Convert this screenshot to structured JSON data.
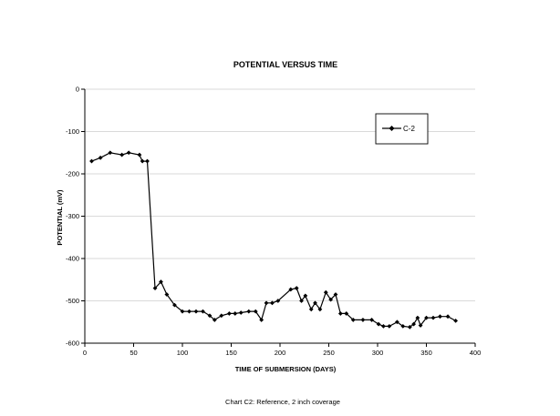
{
  "chart_data": {
    "type": "line",
    "title": "POTENTIAL VERSUS TIME",
    "xlabel": "TIME OF SUBMERSION (DAYS)",
    "ylabel": "POTENTIAL (mV)",
    "xlim": [
      0,
      400
    ],
    "ylim": [
      -600,
      0
    ],
    "xticks": [
      0,
      50,
      100,
      150,
      200,
      250,
      300,
      350,
      400
    ],
    "yticks": [
      0,
      -100,
      -200,
      -300,
      -400,
      -500,
      -600
    ],
    "grid": true,
    "legend_position": "top-right",
    "series": [
      {
        "name": "C-2",
        "color": "#000000",
        "marker": "diamond",
        "points": [
          [
            7,
            -170
          ],
          [
            16,
            -162
          ],
          [
            26,
            -150
          ],
          [
            38,
            -155
          ],
          [
            45,
            -150
          ],
          [
            56,
            -155
          ],
          [
            59,
            -170
          ],
          [
            64,
            -170
          ],
          [
            72,
            -470
          ],
          [
            78,
            -455
          ],
          [
            84,
            -485
          ],
          [
            92,
            -510
          ],
          [
            100,
            -525
          ],
          [
            107,
            -525
          ],
          [
            114,
            -525
          ],
          [
            121,
            -525
          ],
          [
            128,
            -535
          ],
          [
            133,
            -545
          ],
          [
            140,
            -535
          ],
          [
            148,
            -530
          ],
          [
            154,
            -530
          ],
          [
            160,
            -528
          ],
          [
            168,
            -525
          ],
          [
            175,
            -525
          ],
          [
            181,
            -545
          ],
          [
            186,
            -505
          ],
          [
            192,
            -505
          ],
          [
            198,
            -500
          ],
          [
            211,
            -473
          ],
          [
            217,
            -470
          ],
          [
            222,
            -500
          ],
          [
            226,
            -488
          ],
          [
            232,
            -520
          ],
          [
            236,
            -505
          ],
          [
            241,
            -520
          ],
          [
            247,
            -480
          ],
          [
            252,
            -497
          ],
          [
            257,
            -485
          ],
          [
            262,
            -530
          ],
          [
            268,
            -530
          ],
          [
            275,
            -545
          ],
          [
            285,
            -545
          ],
          [
            294,
            -545
          ],
          [
            301,
            -555
          ],
          [
            306,
            -560
          ],
          [
            312,
            -560
          ],
          [
            320,
            -550
          ],
          [
            326,
            -560
          ],
          [
            333,
            -562
          ],
          [
            337,
            -555
          ],
          [
            341,
            -540
          ],
          [
            344,
            -558
          ],
          [
            350,
            -540
          ],
          [
            357,
            -540
          ],
          [
            364,
            -537
          ],
          [
            372,
            -537
          ],
          [
            380,
            -547
          ]
        ]
      }
    ],
    "caption": "Chart C2: Reference, 2 inch coverage"
  }
}
